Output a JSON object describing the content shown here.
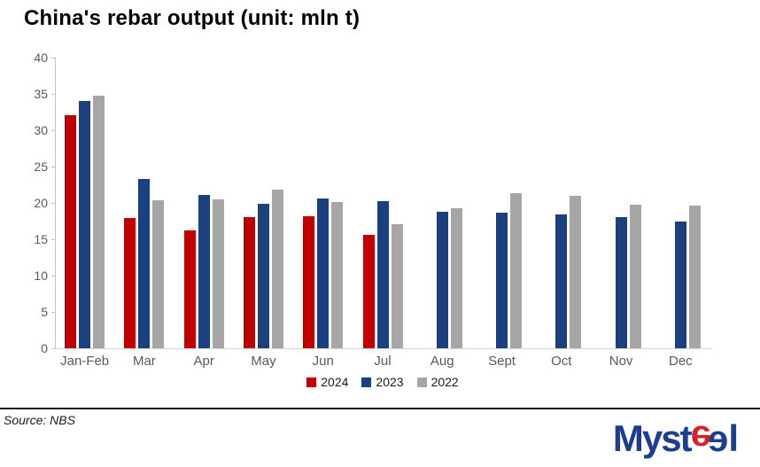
{
  "header": {
    "title": "China's rebar output (unit: mln t)"
  },
  "chart_data": {
    "type": "bar",
    "title": "China's rebar output (unit: mln t)",
    "unit": "mln t",
    "categories": [
      "Jan-Feb",
      "Mar",
      "Apr",
      "May",
      "Jun",
      "Jul",
      "Aug",
      "Sept",
      "Oct",
      "Nov",
      "Dec"
    ],
    "series": [
      {
        "name": "2024",
        "color": "#C00000",
        "values": [
          32.1,
          17.9,
          16.2,
          18.0,
          18.2,
          15.6,
          null,
          null,
          null,
          null,
          null
        ]
      },
      {
        "name": "2023",
        "color": "#1B4080",
        "values": [
          34.0,
          23.3,
          21.1,
          19.9,
          20.6,
          20.3,
          18.8,
          18.6,
          18.4,
          18.0,
          17.5
        ]
      },
      {
        "name": "2022",
        "color": "#A6A6A6",
        "values": [
          34.8,
          20.4,
          20.5,
          21.8,
          20.1,
          17.1,
          19.3,
          21.4,
          21.0,
          19.8,
          19.6
        ]
      }
    ],
    "ylim": [
      0,
      40
    ],
    "yticks": [
      0,
      5,
      10,
      15,
      20,
      25,
      30,
      35,
      40
    ],
    "grid": false,
    "legend_position": "bottom-center",
    "axis_color": "#C3C3C3",
    "tick_label_color": "#595959"
  },
  "footer": {
    "source": "Source: NBS",
    "logo": {
      "text": "Mysteel",
      "part1": "Myst",
      "e1": "e",
      "e2": "e",
      "part2": "l",
      "blue": "#1B3E94",
      "red": "#D62128"
    }
  }
}
